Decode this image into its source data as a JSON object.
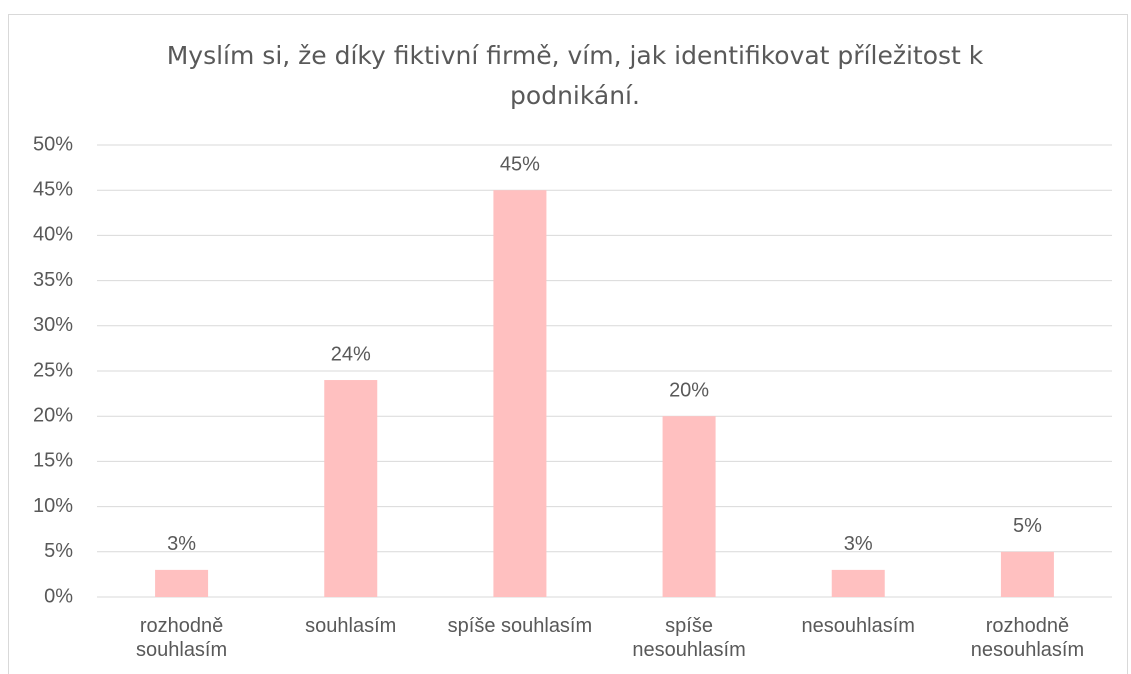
{
  "chart_data": {
    "type": "bar",
    "title": "Myslím si, že díky fiktivní firmě, vím, jak identifikovat příležitost k podnikání.",
    "categories": [
      "rozhodně souhlasím",
      "souhlasím",
      "spíše souhlasím",
      "spíše nesouhlasím",
      "nesouhlasím",
      "rozhodně nesouhlasím"
    ],
    "values": [
      3,
      24,
      45,
      20,
      3,
      5
    ],
    "value_labels": [
      "3%",
      "24%",
      "45%",
      "20%",
      "3%",
      "5%"
    ],
    "color": "#ffc0c0",
    "ylim": [
      0,
      50
    ],
    "yticks": [
      {
        "value": 0,
        "label": "0%"
      },
      {
        "value": 5,
        "label": "5%"
      },
      {
        "value": 10,
        "label": "10%"
      },
      {
        "value": 15,
        "label": "15%"
      },
      {
        "value": 20,
        "label": "20%"
      },
      {
        "value": 25,
        "label": "25%"
      },
      {
        "value": 30,
        "label": "30%"
      },
      {
        "value": 35,
        "label": "35%"
      },
      {
        "value": 40,
        "label": "40%"
      },
      {
        "value": 45,
        "label": "45%"
      },
      {
        "value": 50,
        "label": "50%"
      }
    ],
    "grid": true
  }
}
